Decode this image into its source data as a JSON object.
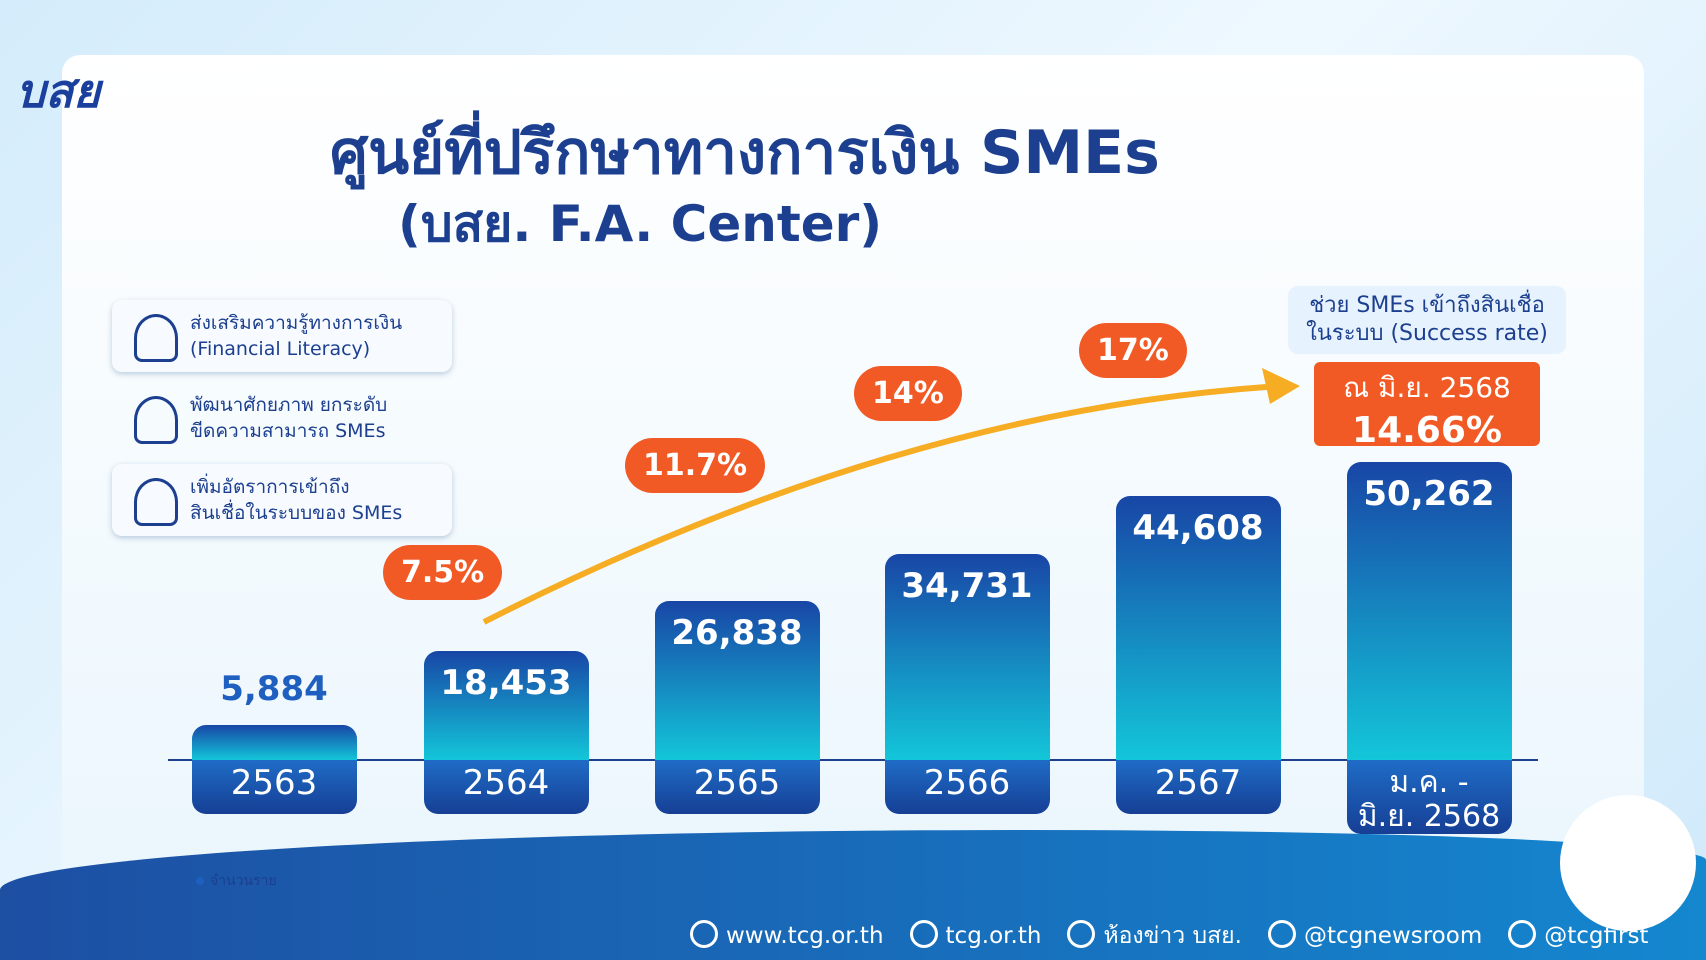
{
  "logo": "บสย",
  "chart_data": {
    "type": "bar",
    "title": "ศูนย์ที่ปรึกษาทางการเงิน SMEs",
    "subtitle": "(บสย. F.A. Center)",
    "categories": [
      "2563",
      "2564",
      "2565",
      "2566",
      "2567",
      "ม.ค. - มิ.ย. 2568"
    ],
    "series": [
      {
        "name": "จำนวนราย",
        "color": "#1f5fc0",
        "values": [
          5884,
          18453,
          26838,
          34731,
          44608,
          50262
        ],
        "value_labels": [
          "5,884",
          "18,453",
          "26,838",
          "34,731",
          "44,608",
          "50,262"
        ]
      }
    ],
    "rate_values": [
      null,
      7.5,
      11.7,
      14,
      17,
      null
    ],
    "rate_labels": [
      null,
      "7.5%",
      "11.7%",
      "14%",
      "17%",
      null
    ],
    "callout": {
      "lines": [
        "ช่วย SMEs เข้าถึงสินเชื่อ",
        "ในระบบ (Success rate)"
      ],
      "date": "ณ มิ.ย. 2568",
      "value": 14.66,
      "value_label": "14.66%"
    }
  },
  "features": [
    [
      "ส่งเสริมความรู้ทางการเงิน",
      "(Financial Literacy)"
    ],
    [
      "พัฒนาศักยภาพ ยกระดับ",
      "ขีดความสามารถ SMEs"
    ],
    [
      "เพิ่มอัตราการเข้าถึง",
      "สินเชื่อในระบบของ SMEs"
    ]
  ],
  "footer": [
    "www.tcg.or.th",
    "tcg.or.th",
    "ห้องข่าว บสย.",
    "@tcgnewsroom",
    "@tcgfirst"
  ]
}
